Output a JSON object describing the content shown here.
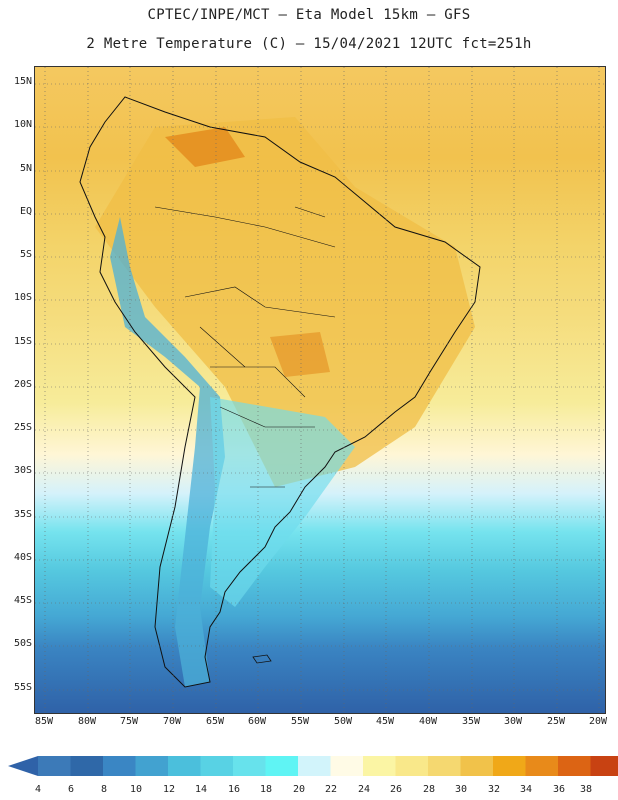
{
  "title": {
    "line1": "CPTEC/INPE/MCT –  Eta Model 15km – GFS",
    "line2": "2 Metre Temperature (C) – 15/04/2021 12UTC fct=251h"
  },
  "latitude_labels": [
    "15N",
    "10N",
    "5N",
    "EQ",
    "5S",
    "10S",
    "15S",
    "20S",
    "25S",
    "30S",
    "35S",
    "40S",
    "45S",
    "50S",
    "55S"
  ],
  "longitude_labels": [
    "85W",
    "80W",
    "75W",
    "70W",
    "65W",
    "60W",
    "55W",
    "50W",
    "45W",
    "40W",
    "35W",
    "30W",
    "25W",
    "20W"
  ],
  "colorbar": {
    "labels": [
      "4",
      "6",
      "8",
      "10",
      "12",
      "14",
      "16",
      "18",
      "20",
      "22",
      "24",
      "26",
      "28",
      "30",
      "32",
      "34",
      "36",
      "38"
    ],
    "colors": [
      "#3c7ab8",
      "#2f68a8",
      "#3a86c4",
      "#42a2d0",
      "#4bbfdc",
      "#58d2e4",
      "#67e2ec",
      "#5ff4f4",
      "#d2f4fb",
      "#fffbe6",
      "#fbf5a4",
      "#f9e88a",
      "#f5d870",
      "#f1c24a",
      "#f0a818",
      "#e88a1a",
      "#dc6414",
      "#c84212"
    ],
    "low_color": "#2f62a8",
    "high_color": "#b23a12"
  },
  "map": {
    "region": "South America",
    "grid": true
  }
}
